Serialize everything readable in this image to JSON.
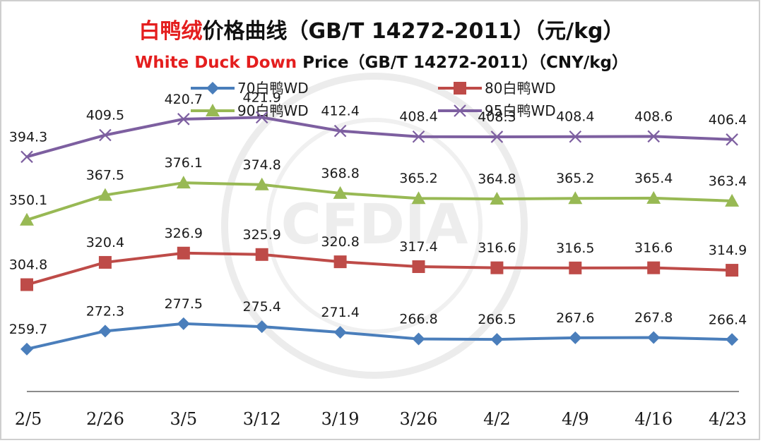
{
  "chart_data": {
    "type": "line",
    "title_parts": [
      {
        "text": "白鸭绒",
        "color": "#e41e1e"
      },
      {
        "text": "价格曲线（GB/T 14272-2011）（元/kg）",
        "color": "#111111"
      }
    ],
    "subtitle_parts": [
      {
        "text": "White Duck Down",
        "color": "#e41e1e"
      },
      {
        "text": " Price（GB/T 14272-2011）（CNY/kg）",
        "color": "#111111"
      }
    ],
    "categories": [
      "2/5",
      "2/26",
      "3/5",
      "3/12",
      "3/19",
      "3/26",
      "4/2",
      "4/9",
      "4/16",
      "4/23"
    ],
    "ylim": [
      230,
      430
    ],
    "grid": false,
    "legend_position": "top",
    "watermark": "CFDIA 中国羽绒工业协会",
    "series": [
      {
        "name": "70白鸭WD",
        "color": "#4a7ebb",
        "marker": "diamond",
        "values": [
          259.7,
          272.3,
          277.5,
          275.4,
          271.4,
          266.8,
          266.5,
          267.6,
          267.8,
          266.4
        ]
      },
      {
        "name": "80白鸭WD",
        "color": "#be4b48",
        "marker": "square",
        "values": [
          304.8,
          320.4,
          326.9,
          325.9,
          320.8,
          317.4,
          316.6,
          316.5,
          316.6,
          314.9
        ]
      },
      {
        "name": "90白鸭WD",
        "color": "#98b954",
        "marker": "triangle",
        "values": [
          350.1,
          367.5,
          376.1,
          374.8,
          368.8,
          365.2,
          364.8,
          365.2,
          365.4,
          363.4
        ]
      },
      {
        "name": "95白鸭WD",
        "color": "#7d5fa0",
        "marker": "x",
        "values": [
          394.3,
          409.5,
          420.7,
          421.9,
          412.4,
          408.4,
          408.3,
          408.4,
          408.6,
          406.4
        ]
      }
    ]
  }
}
